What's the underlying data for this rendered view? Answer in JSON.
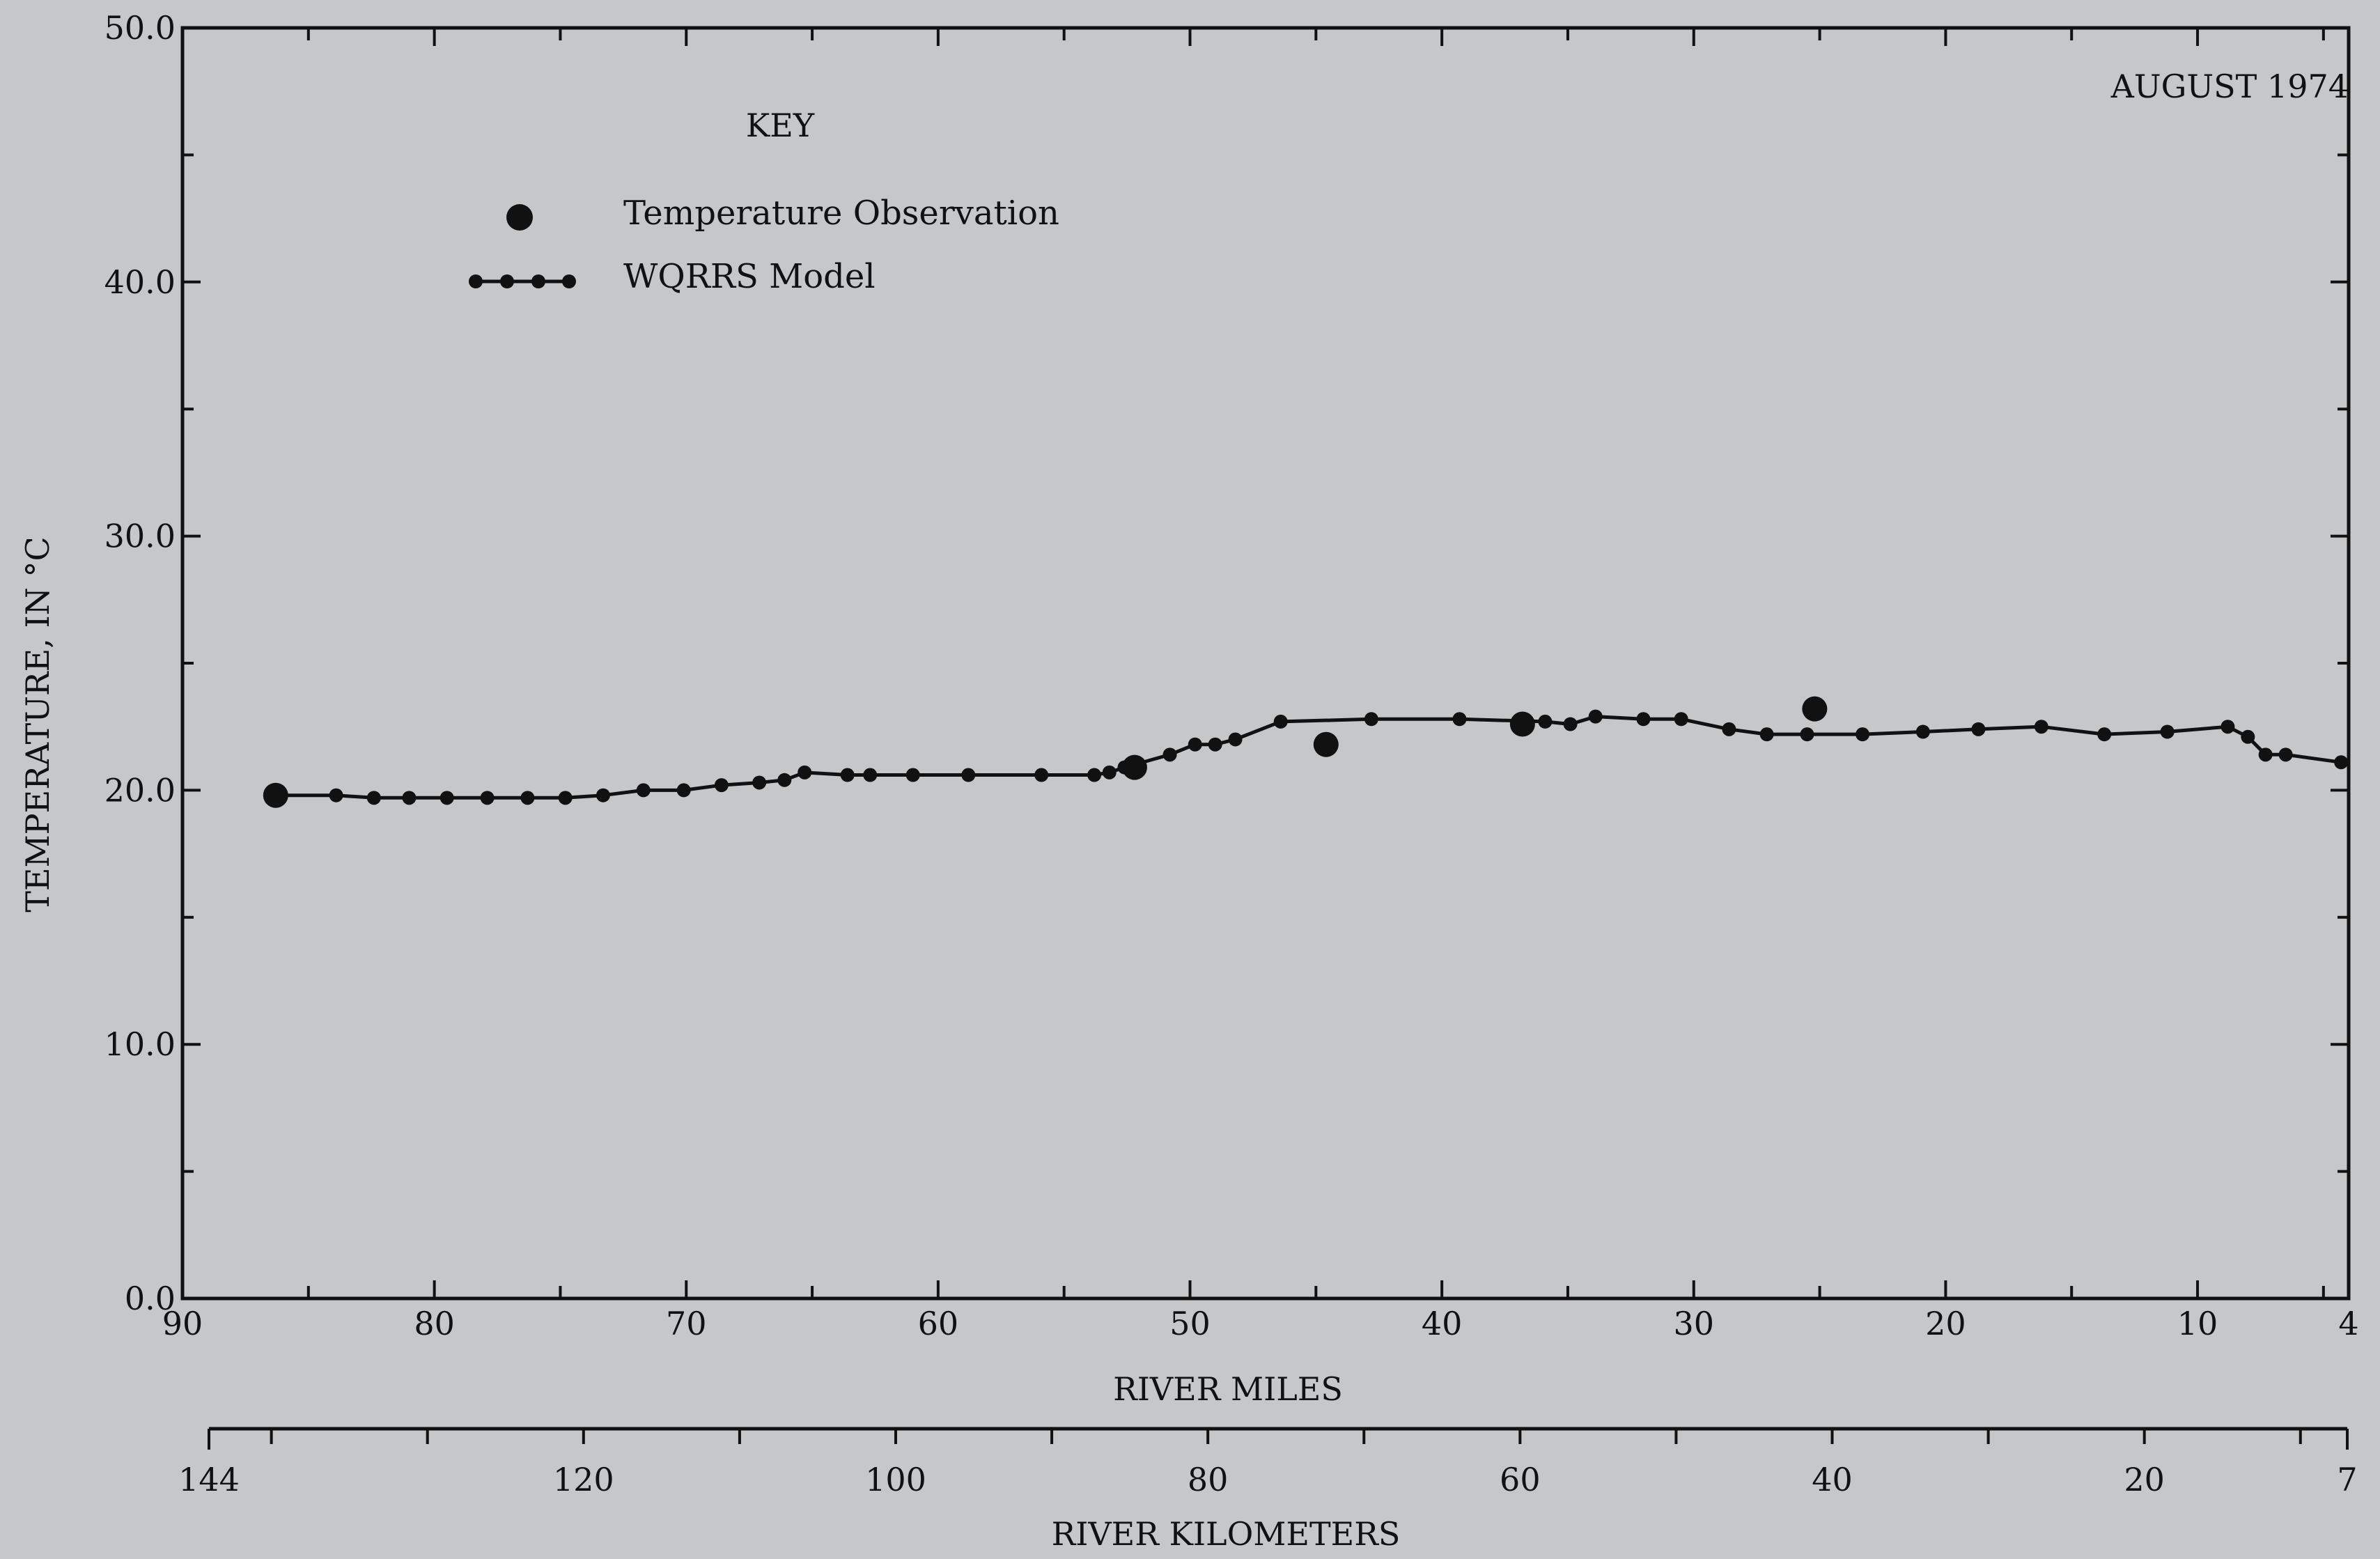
{
  "chart_data": {
    "type": "line",
    "annotation": "AUGUST 1974",
    "ylabel": "TEMPERATURE, IN °C",
    "xlabel": "RIVER MILES",
    "x2label": "RIVER KILOMETERS",
    "ylim": [
      0,
      50
    ],
    "xlim": [
      90,
      4
    ],
    "y_ticks": [
      "0.0",
      "10.0",
      "20.0",
      "30.0",
      "40.0",
      "50.0"
    ],
    "x_ticks": [
      "90",
      "80",
      "70",
      "60",
      "50",
      "40",
      "30",
      "20",
      "10",
      "4"
    ],
    "x2_ticks": [
      "144",
      "120",
      "100",
      "80",
      "60",
      "40",
      "20",
      "7"
    ],
    "legend": {
      "title": "KEY",
      "items": [
        {
          "label": "Temperature Observation",
          "marker": "dot"
        },
        {
          "label": "WQRRS Model",
          "marker": "dot-line"
        }
      ]
    },
    "series": [
      {
        "name": "WQRRS Model",
        "x": [
          86.3,
          83.9,
          82.4,
          81.0,
          79.5,
          77.9,
          76.3,
          74.8,
          73.3,
          71.7,
          70.1,
          68.6,
          67.1,
          66.1,
          65.3,
          63.6,
          62.7,
          61.0,
          58.8,
          55.9,
          53.8,
          53.2,
          52.6,
          50.8,
          49.8,
          49.0,
          48.2,
          46.4,
          42.8,
          39.3,
          35.9,
          34.9,
          33.9,
          32.0,
          30.5,
          28.6,
          27.1,
          25.5,
          23.3,
          20.9,
          18.7,
          16.2,
          13.7,
          11.2,
          8.8,
          8.0,
          7.3,
          6.5,
          4.3
        ],
        "y": [
          19.8,
          19.8,
          19.7,
          19.7,
          19.7,
          19.7,
          19.7,
          19.7,
          19.8,
          20.0,
          20.0,
          20.2,
          20.3,
          20.4,
          20.7,
          20.6,
          20.6,
          20.6,
          20.6,
          20.6,
          20.6,
          20.7,
          20.9,
          21.4,
          21.8,
          21.8,
          22.0,
          22.7,
          22.8,
          22.8,
          22.7,
          22.6,
          22.9,
          22.8,
          22.8,
          22.4,
          22.2,
          22.2,
          22.2,
          22.3,
          22.4,
          22.5,
          22.2,
          22.3,
          22.5,
          22.1,
          21.4,
          21.4,
          21.1
        ]
      },
      {
        "name": "Temperature Observation",
        "x": [
          86.3,
          52.2,
          44.6,
          36.8,
          25.2
        ],
        "y": [
          19.8,
          20.9,
          21.8,
          22.6,
          23.2
        ]
      }
    ]
  }
}
